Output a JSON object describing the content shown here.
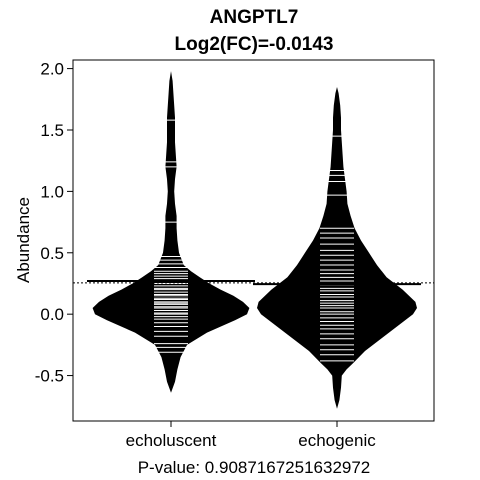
{
  "chart_data": {
    "type": "beanplot",
    "title": "ANGPTL7",
    "subtitle": "Log2(FC)=-0.0143",
    "ylabel": "Abundance",
    "xlabel": "P-value: 0.9087167251632972",
    "categories": [
      "echoluscent",
      "echogenic"
    ],
    "ylim": [
      -0.87,
      2.07
    ],
    "yticks": [
      -0.5,
      0.0,
      0.5,
      1.0,
      1.5,
      2.0
    ],
    "ytick_labels": [
      "-0.5",
      "0.0",
      "0.5",
      "1.0",
      "1.5",
      "2.0"
    ],
    "overall_mean": 0.255,
    "grid": false,
    "colors": {
      "bean": "#000000",
      "line": "#ffffff",
      "background": "#ffffff"
    },
    "series": [
      {
        "category": "echoluscent",
        "mean": 0.27,
        "density": [
          [
            -0.64,
            0.0
          ],
          [
            -0.55,
            0.05
          ],
          [
            -0.45,
            0.08
          ],
          [
            -0.35,
            0.12
          ],
          [
            -0.25,
            0.2
          ],
          [
            -0.15,
            0.45
          ],
          [
            -0.05,
            0.8
          ],
          [
            0.0,
            0.95
          ],
          [
            0.05,
            0.98
          ],
          [
            0.1,
            0.9
          ],
          [
            0.15,
            0.78
          ],
          [
            0.2,
            0.62
          ],
          [
            0.25,
            0.48
          ],
          [
            0.3,
            0.36
          ],
          [
            0.35,
            0.25
          ],
          [
            0.4,
            0.16
          ],
          [
            0.5,
            0.1
          ],
          [
            0.6,
            0.08
          ],
          [
            0.7,
            0.07
          ],
          [
            0.8,
            0.07
          ],
          [
            0.9,
            0.05
          ],
          [
            1.0,
            0.04
          ],
          [
            1.1,
            0.05
          ],
          [
            1.2,
            0.07
          ],
          [
            1.3,
            0.06
          ],
          [
            1.4,
            0.05
          ],
          [
            1.5,
            0.05
          ],
          [
            1.6,
            0.05
          ],
          [
            1.7,
            0.04
          ],
          [
            1.8,
            0.03
          ],
          [
            1.9,
            0.02
          ],
          [
            1.98,
            0.0
          ]
        ],
        "points": [
          -0.31,
          -0.27,
          -0.24,
          -0.18,
          -0.14,
          -0.1,
          -0.07,
          -0.04,
          -0.02,
          0.0,
          0.01,
          0.03,
          0.05,
          0.06,
          0.08,
          0.09,
          0.1,
          0.12,
          0.13,
          0.15,
          0.16,
          0.18,
          0.2,
          0.21,
          0.23,
          0.25,
          0.27,
          0.29,
          0.31,
          0.33,
          0.35,
          0.38,
          0.41,
          0.44,
          0.47,
          0.75,
          1.2,
          1.24,
          1.58
        ]
      },
      {
        "category": "echogenic",
        "mean": 0.245,
        "density": [
          [
            -0.77,
            0.0
          ],
          [
            -0.7,
            0.03
          ],
          [
            -0.6,
            0.05
          ],
          [
            -0.5,
            0.06
          ],
          [
            -0.45,
            0.12
          ],
          [
            -0.4,
            0.2
          ],
          [
            -0.3,
            0.35
          ],
          [
            -0.2,
            0.55
          ],
          [
            -0.1,
            0.75
          ],
          [
            0.0,
            0.95
          ],
          [
            0.05,
            1.0
          ],
          [
            0.1,
            0.98
          ],
          [
            0.2,
            0.82
          ],
          [
            0.3,
            0.62
          ],
          [
            0.4,
            0.5
          ],
          [
            0.5,
            0.4
          ],
          [
            0.6,
            0.3
          ],
          [
            0.7,
            0.22
          ],
          [
            0.8,
            0.17
          ],
          [
            0.9,
            0.13
          ],
          [
            1.0,
            0.12
          ],
          [
            1.1,
            0.1
          ],
          [
            1.2,
            0.08
          ],
          [
            1.3,
            0.07
          ],
          [
            1.4,
            0.06
          ],
          [
            1.5,
            0.05
          ],
          [
            1.6,
            0.05
          ],
          [
            1.7,
            0.04
          ],
          [
            1.8,
            0.02
          ],
          [
            1.85,
            0.0
          ]
        ],
        "points": [
          -0.38,
          -0.33,
          -0.29,
          -0.25,
          -0.2,
          -0.16,
          -0.12,
          -0.09,
          -0.06,
          -0.03,
          0.0,
          0.02,
          0.05,
          0.07,
          0.09,
          0.11,
          0.14,
          0.16,
          0.19,
          0.21,
          0.24,
          0.27,
          0.3,
          0.33,
          0.36,
          0.4,
          0.44,
          0.48,
          0.52,
          0.57,
          0.62,
          0.66,
          0.7,
          0.97,
          1.08,
          1.13,
          1.17,
          1.45
        ]
      }
    ]
  }
}
